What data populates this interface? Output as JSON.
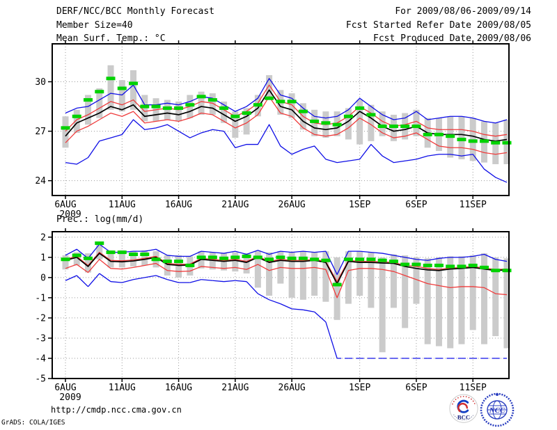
{
  "header": {
    "title": "DERF/NCC/BCC Monthly Forecast",
    "member_size": "Member Size=40",
    "valid_range": "For 2009/08/06-2009/09/14",
    "refer_date": "Fcst Started Refer Date 2009/08/05",
    "produced_date": "Fcst Produced Date 2009/08/06"
  },
  "footer": {
    "url": "http://cmdp.ncc.cma.gov.cn",
    "credit": "GrADS: COLA/IGES"
  },
  "logos": {
    "bcc_label": "BCC",
    "ncc_label": "NCC"
  },
  "colors": {
    "max_min": "#0e0ee6",
    "quartile": "#ef3b3b",
    "mean": "#000000",
    "obs": "#00d200",
    "spread_bar": "#cbcbcb",
    "grid": "#9a9a9a"
  },
  "chart_data": [
    {
      "type": "line",
      "name": "temperature-chart",
      "title": "Mean Surf. Temp.: °C",
      "ylabel": "°C",
      "grid": true,
      "ylim": [
        23.1,
        32.3
      ],
      "yticks": [
        30,
        27,
        24
      ],
      "xticks": {
        "labels": [
          "6AUG",
          "11AUG",
          "16AUG",
          "21AUG",
          "26AUG",
          "1SEP",
          "6SEP",
          "11SEP"
        ],
        "days": [
          0,
          5,
          10,
          15,
          20,
          26,
          31,
          36
        ],
        "year_label": "2009"
      },
      "x_dates": [
        "8/6",
        "8/7",
        "8/8",
        "8/9",
        "8/10",
        "8/11",
        "8/12",
        "8/13",
        "8/14",
        "8/15",
        "8/16",
        "8/17",
        "8/18",
        "8/19",
        "8/20",
        "8/21",
        "8/22",
        "8/23",
        "8/24",
        "8/25",
        "8/26",
        "8/27",
        "8/28",
        "8/29",
        "8/30",
        "8/31",
        "9/1",
        "9/2",
        "9/3",
        "9/4",
        "9/5",
        "9/6",
        "9/7",
        "9/8",
        "9/9",
        "9/10",
        "9/11",
        "9/12",
        "9/13",
        "9/14"
      ],
      "series": [
        {
          "name": "ensemble-max",
          "color_key": "max_min",
          "values": [
            28.1,
            28.4,
            28.5,
            28.9,
            29.3,
            29.2,
            29.8,
            28.6,
            28.6,
            28.7,
            28.6,
            28.8,
            29.1,
            29.0,
            28.6,
            28.2,
            28.5,
            29.0,
            30.2,
            29.2,
            29.0,
            28.4,
            27.9,
            27.8,
            27.9,
            28.3,
            29.0,
            28.5,
            28.0,
            27.7,
            27.8,
            28.2,
            27.7,
            27.8,
            27.9,
            27.9,
            27.8,
            27.6,
            27.5,
            27.7
          ]
        },
        {
          "name": "upper-quartile",
          "color_key": "quartile",
          "values": [
            27.0,
            27.7,
            28.0,
            28.4,
            28.8,
            28.6,
            28.9,
            28.2,
            28.3,
            28.4,
            28.3,
            28.5,
            28.8,
            28.7,
            28.3,
            27.9,
            28.2,
            28.7,
            29.8,
            28.8,
            28.6,
            27.9,
            27.5,
            27.4,
            27.5,
            27.9,
            28.5,
            28.1,
            27.6,
            27.3,
            27.4,
            27.6,
            27.2,
            27.1,
            27.1,
            27.1,
            27.0,
            26.8,
            26.7,
            26.8
          ]
        },
        {
          "name": "ensemble-mean",
          "color_key": "mean",
          "width": 1.7,
          "values": [
            26.7,
            27.5,
            27.8,
            28.1,
            28.5,
            28.3,
            28.6,
            27.9,
            28.0,
            28.1,
            28.0,
            28.2,
            28.5,
            28.4,
            28.0,
            27.6,
            27.9,
            28.4,
            29.5,
            28.5,
            28.3,
            27.6,
            27.2,
            27.1,
            27.2,
            27.6,
            28.2,
            27.8,
            27.3,
            27.0,
            27.1,
            27.3,
            26.9,
            26.8,
            26.8,
            26.8,
            26.7,
            26.5,
            26.4,
            26.5
          ]
        },
        {
          "name": "lower-quartile",
          "color_key": "quartile",
          "values": [
            26.3,
            27.0,
            27.3,
            27.7,
            28.1,
            27.9,
            28.2,
            27.5,
            27.6,
            27.7,
            27.6,
            27.8,
            28.1,
            28.0,
            27.6,
            27.2,
            27.5,
            28.0,
            29.1,
            28.1,
            27.9,
            27.2,
            26.8,
            26.7,
            26.8,
            27.2,
            27.8,
            27.4,
            26.9,
            26.6,
            26.7,
            26.9,
            26.5,
            26.1,
            26.0,
            26.0,
            25.9,
            25.7,
            25.6,
            25.7
          ]
        },
        {
          "name": "ensemble-min",
          "color_key": "max_min",
          "values": [
            25.1,
            25.0,
            25.4,
            26.4,
            26.6,
            26.8,
            27.7,
            27.1,
            27.2,
            27.4,
            27.0,
            26.6,
            26.9,
            27.1,
            27.0,
            26.0,
            26.2,
            26.2,
            27.4,
            26.1,
            25.6,
            25.9,
            26.1,
            25.3,
            25.1,
            25.2,
            25.3,
            26.2,
            25.5,
            25.1,
            25.2,
            25.3,
            25.5,
            25.6,
            25.6,
            25.5,
            25.6,
            24.7,
            24.2,
            23.9
          ]
        }
      ],
      "obs_dashes": {
        "name": "observation",
        "color_key": "obs",
        "values": [
          27.2,
          27.9,
          28.9,
          29.4,
          30.2,
          29.6,
          29.9,
          28.5,
          28.5,
          28.4,
          28.4,
          28.6,
          29.1,
          28.9,
          28.4,
          27.9,
          28.1,
          28.6,
          29.0,
          28.8,
          28.8,
          28.2,
          27.6,
          27.5,
          27.4,
          27.9,
          28.4,
          28.0,
          27.3,
          27.3,
          27.3,
          27.3,
          26.8,
          26.8,
          26.7,
          26.5,
          26.4,
          26.4,
          26.3,
          26.3
        ]
      },
      "spread_bars": {
        "low": [
          26.0,
          26.9,
          27.4,
          27.8,
          28.3,
          28.2,
          28.3,
          27.6,
          27.6,
          27.7,
          27.6,
          27.8,
          28.0,
          28.0,
          27.5,
          26.6,
          26.8,
          27.9,
          28.9,
          28.0,
          27.8,
          27.1,
          26.7,
          26.6,
          26.7,
          26.5,
          26.2,
          26.4,
          26.7,
          26.4,
          26.5,
          26.7,
          26.0,
          25.8,
          25.4,
          25.3,
          25.2,
          25.1,
          25.0,
          25.0
        ],
        "high": [
          27.9,
          28.3,
          29.2,
          29.6,
          31.0,
          30.1,
          30.7,
          29.2,
          29.0,
          28.9,
          28.8,
          29.2,
          29.4,
          29.3,
          28.8,
          28.2,
          28.4,
          29.2,
          30.4,
          29.5,
          29.3,
          28.7,
          28.3,
          28.2,
          28.2,
          28.4,
          28.9,
          28.6,
          28.2,
          28.0,
          28.1,
          28.3,
          27.8,
          27.8,
          27.9,
          27.9,
          27.8,
          27.6,
          27.5,
          27.7
        ]
      }
    },
    {
      "type": "line",
      "name": "precipitation-chart",
      "title": "Prec.: log(mm/d)",
      "ylabel": "log(mm/d)",
      "grid": true,
      "ylim": [
        -5,
        2.27
      ],
      "yticks": [
        2,
        1,
        0,
        -1,
        -2,
        -3,
        -4,
        -5
      ],
      "xticks": {
        "labels": [
          "6AUG",
          "11AUG",
          "16AUG",
          "21AUG",
          "26AUG",
          "1SEP",
          "6SEP",
          "11SEP"
        ],
        "days": [
          0,
          5,
          10,
          15,
          20,
          26,
          31,
          36
        ],
        "year_label": "2009"
      },
      "x_dates": [
        "8/6",
        "8/7",
        "8/8",
        "8/9",
        "8/10",
        "8/11",
        "8/12",
        "8/13",
        "8/14",
        "8/15",
        "8/16",
        "8/17",
        "8/18",
        "8/19",
        "8/20",
        "8/21",
        "8/22",
        "8/23",
        "8/24",
        "8/25",
        "8/26",
        "8/27",
        "8/28",
        "8/29",
        "8/30",
        "8/31",
        "9/1",
        "9/2",
        "9/3",
        "9/4",
        "9/5",
        "9/6",
        "9/7",
        "9/8",
        "9/9",
        "9/10",
        "9/11",
        "9/12",
        "9/13",
        "9/14"
      ],
      "series": [
        {
          "name": "ensemble-max",
          "color_key": "max_min",
          "values": [
            1.1,
            1.4,
            0.95,
            1.65,
            1.25,
            1.25,
            1.3,
            1.3,
            1.4,
            1.1,
            1.05,
            1.05,
            1.3,
            1.25,
            1.2,
            1.3,
            1.15,
            1.35,
            1.15,
            1.3,
            1.25,
            1.3,
            1.25,
            1.3,
            0.15,
            1.3,
            1.3,
            1.25,
            1.2,
            1.1,
            1.0,
            0.9,
            0.85,
            0.95,
            1.0,
            1.0,
            1.05,
            1.15,
            0.9,
            0.8
          ]
        },
        {
          "name": "upper-quartile",
          "color_key": "quartile",
          "values": [
            0.9,
            1.05,
            0.6,
            1.25,
            0.85,
            0.83,
            0.87,
            0.95,
            1.05,
            0.7,
            0.65,
            0.67,
            0.95,
            0.9,
            0.85,
            0.9,
            0.8,
            1.05,
            0.8,
            0.9,
            0.85,
            0.85,
            0.9,
            0.8,
            -0.2,
            0.85,
            0.8,
            0.8,
            0.78,
            0.75,
            0.6,
            0.55,
            0.45,
            0.4,
            0.47,
            0.5,
            0.55,
            0.47,
            0.4,
            0.42
          ]
        },
        {
          "name": "ensemble-mean",
          "color_key": "mean",
          "width": 1.7,
          "values": [
            0.85,
            1.0,
            0.55,
            1.2,
            0.8,
            0.78,
            0.82,
            0.9,
            1.0,
            0.65,
            0.6,
            0.62,
            0.9,
            0.85,
            0.8,
            0.85,
            0.75,
            1.0,
            0.75,
            0.85,
            0.8,
            0.8,
            0.85,
            0.75,
            -0.3,
            0.8,
            0.75,
            0.75,
            0.72,
            0.7,
            0.55,
            0.45,
            0.38,
            0.35,
            0.42,
            0.45,
            0.5,
            0.42,
            0.35,
            0.38
          ]
        },
        {
          "name": "lower-quartile",
          "color_key": "quartile",
          "values": [
            0.45,
            0.65,
            0.25,
            0.9,
            0.45,
            0.42,
            0.5,
            0.6,
            0.7,
            0.35,
            0.3,
            0.32,
            0.55,
            0.5,
            0.45,
            0.5,
            0.4,
            0.65,
            0.35,
            0.5,
            0.45,
            0.45,
            0.5,
            0.4,
            -1.0,
            0.35,
            0.45,
            0.45,
            0.4,
            0.3,
            0.1,
            -0.1,
            -0.3,
            -0.4,
            -0.5,
            -0.45,
            -0.45,
            -0.5,
            -0.8,
            -0.85
          ]
        },
        {
          "name": "ensemble-min",
          "color_key": "max_min",
          "dash_value": -4,
          "values": [
            -0.15,
            0.1,
            -0.45,
            0.2,
            -0.2,
            -0.25,
            -0.1,
            0.0,
            0.1,
            -0.1,
            -0.25,
            -0.25,
            -0.1,
            -0.15,
            -0.2,
            -0.15,
            -0.2,
            -0.8,
            -1.1,
            -1.3,
            -1.55,
            -1.6,
            -1.7,
            -2.2,
            -4.0,
            -4.0,
            -4.0,
            -4.0,
            -4.0,
            -4.0,
            -4.0,
            -4.0,
            -4.0,
            -4.0,
            -4.0,
            -4.0,
            -4.0,
            -4.0,
            -4.0,
            -4.0
          ]
        }
      ],
      "obs_dashes": {
        "name": "observation",
        "color_key": "obs",
        "values": [
          0.9,
          1.1,
          0.95,
          1.7,
          1.25,
          1.25,
          1.15,
          1.15,
          0.9,
          0.8,
          0.8,
          0.6,
          1.0,
          1.0,
          0.95,
          1.0,
          1.05,
          1.0,
          0.9,
          1.0,
          0.95,
          0.95,
          0.9,
          0.85,
          -0.35,
          0.9,
          0.9,
          0.9,
          0.85,
          0.8,
          0.65,
          0.65,
          0.6,
          0.6,
          0.55,
          0.55,
          0.6,
          0.5,
          0.35,
          0.35
        ]
      },
      "spread_bars": {
        "low": [
          0.4,
          0.6,
          0.25,
          0.9,
          0.5,
          0.5,
          0.55,
          0.6,
          0.5,
          0.1,
          0.0,
          0.1,
          0.45,
          0.4,
          0.35,
          0.3,
          0.2,
          -0.5,
          -0.9,
          -0.3,
          -1.0,
          -1.1,
          -0.9,
          -1.2,
          -2.1,
          -1.3,
          -0.9,
          -1.5,
          -3.7,
          -1.5,
          -2.5,
          -1.3,
          -3.3,
          -3.4,
          -3.5,
          -3.3,
          -2.6,
          -3.3,
          -2.9,
          -3.5
        ],
        "high": [
          1.1,
          1.25,
          1.2,
          1.75,
          1.35,
          1.35,
          1.3,
          1.35,
          1.3,
          1.1,
          1.1,
          1.05,
          1.3,
          1.25,
          1.2,
          1.25,
          1.2,
          1.3,
          1.25,
          1.3,
          1.25,
          1.3,
          1.25,
          1.3,
          1.0,
          1.3,
          1.3,
          1.25,
          1.0,
          1.15,
          1.1,
          1.0,
          0.95,
          1.0,
          1.05,
          1.05,
          1.1,
          1.2,
          1.0,
          0.95
        ]
      }
    }
  ]
}
